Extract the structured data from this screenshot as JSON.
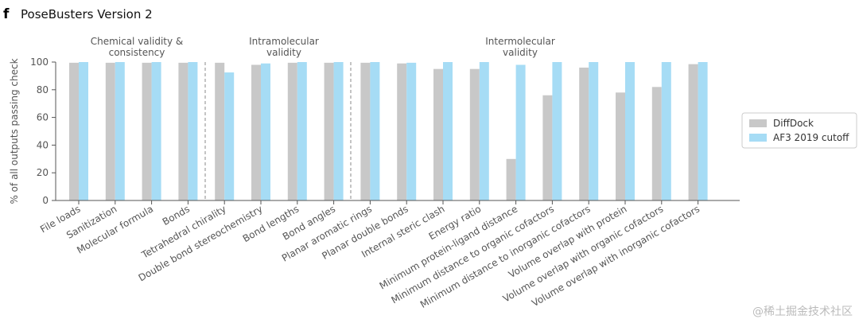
{
  "panel_letter": "f",
  "watermark": "@稀土掘金技术社区",
  "chart_data": {
    "type": "bar",
    "title": "PoseBusters Version 2",
    "ylabel": "% of all outputs passing check",
    "xlabel": "",
    "ylim": [
      0,
      100
    ],
    "yticks": [
      0,
      20,
      40,
      60,
      80,
      100
    ],
    "grid": false,
    "legend_position": "right",
    "categories": [
      "File loads",
      "Sanitization",
      "Molecular formula",
      "Bonds",
      "Tetrahedral chirality",
      "Double bond stereochemistry",
      "Bond lengths",
      "Bond angles",
      "Planar aromatic rings",
      "Planar double bonds",
      "Internal steric clash",
      "Energy ratio",
      "Minimum protein-ligand distance",
      "Minimum distance to organic cofactors",
      "Minimum distance to inorganic cofactors",
      "Volume overlap with protein",
      "Volume overlap with organic cofactors",
      "Volume overlap with inorganic cofactors"
    ],
    "series": [
      {
        "name": "DiffDock",
        "color": "#c8c8c8",
        "values": [
          99.5,
          99.5,
          99.5,
          99.5,
          99.5,
          98,
          99.5,
          99.5,
          99.5,
          99,
          95,
          95,
          30,
          76,
          96,
          78,
          82,
          98.5
        ]
      },
      {
        "name": "AF3 2019 cutoff",
        "color": "#a6dcf5",
        "values": [
          100,
          100,
          100,
          100,
          92.5,
          99,
          100,
          100,
          100,
          99.5,
          100,
          100,
          98,
          100,
          100,
          100,
          100,
          100
        ]
      }
    ],
    "groups": [
      {
        "label": [
          "Chemical validity &",
          "consistency"
        ]
      },
      {
        "label": [
          "Intramolecular",
          "validity"
        ]
      },
      {
        "label": [
          "Intermolecular",
          "validity"
        ]
      }
    ]
  }
}
